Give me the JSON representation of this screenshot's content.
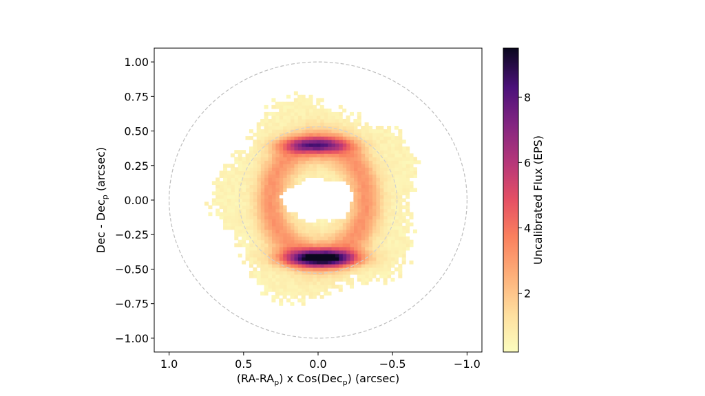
{
  "chart_data": {
    "type": "heatmap",
    "xlabel": {
      "main": "(RA-RA",
      "sub": "p",
      "mid": ") x Cos(Dec",
      "sub2": "p",
      "tail": ") (arcsec)"
    },
    "ylabel": {
      "main": "Dec - Dec",
      "sub": "p",
      "tail": " (arcsec)"
    },
    "xlim": [
      1.1,
      -1.1
    ],
    "ylim": [
      -1.1,
      1.1
    ],
    "x_ticks": [
      1.0,
      0.5,
      0.0,
      -0.5,
      -1.0
    ],
    "x_tick_labels": [
      "1.0",
      "0.5",
      "0.0",
      "−0.5",
      "−1.0"
    ],
    "y_ticks": [
      1.0,
      0.75,
      0.5,
      0.25,
      0.0,
      -0.25,
      -0.5,
      -0.75,
      -1.0
    ],
    "y_tick_labels": [
      "1.00",
      "0.75",
      "0.50",
      "0.25",
      "0.00",
      "−0.25",
      "−0.50",
      "−0.75",
      "−1.00"
    ],
    "colormap": "magma_r",
    "colorbar": {
      "label": "Uncalibrated Flux (EPS)",
      "range": [
        0.2,
        9.5
      ],
      "ticks": [
        2,
        4,
        6,
        8
      ],
      "tick_labels": [
        "2",
        "4",
        "6",
        "8"
      ]
    },
    "model": {
      "pixel_size_arcsec": 0.025,
      "ring_center": [
        0.0,
        0.0
      ],
      "ring_radius_x": 0.32,
      "ring_radius_y": 0.4,
      "ring_width": 0.115,
      "inner_hole_radius_x": 0.24,
      "inner_hole_radius_y": 0.16,
      "outer_extent": 0.55,
      "peak_flux": 9.3,
      "north_arc": {
        "center": [
          0.02,
          0.4
        ],
        "flux": 6.8
      },
      "south_arc": {
        "center": [
          -0.02,
          -0.42
        ],
        "flux": 9.3
      }
    },
    "circles": [
      {
        "radius": 1.0,
        "style": "dashed",
        "color": "#bdbdbd"
      },
      {
        "radius": 0.53,
        "style": "dashed",
        "color": "#d0d0d0"
      }
    ]
  }
}
